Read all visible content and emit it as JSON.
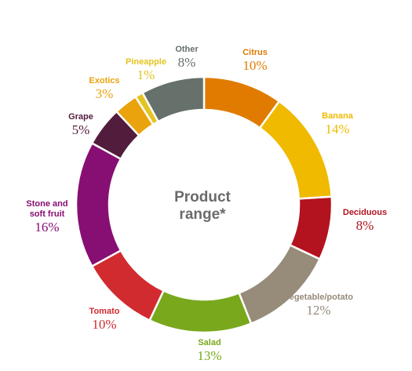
{
  "chart_data": {
    "type": "pie",
    "variant": "donut",
    "center_title": [
      "Product",
      "range*"
    ],
    "slices": [
      {
        "label": [
          "Citrus"
        ],
        "value": 10,
        "value_label": "10%",
        "color": "#e07b00"
      },
      {
        "label": [
          "Banana"
        ],
        "value": 14,
        "value_label": "14%",
        "color": "#efba00"
      },
      {
        "label": [
          "Deciduous"
        ],
        "value": 8,
        "value_label": "8%",
        "color": "#b3121f"
      },
      {
        "label": [
          "Vegetable/potato"
        ],
        "value": 12,
        "value_label": "12%",
        "color": "#978b79"
      },
      {
        "label": [
          "Salad"
        ],
        "value": 13,
        "value_label": "13%",
        "color": "#79a81d"
      },
      {
        "label": [
          "Tomato"
        ],
        "value": 10,
        "value_label": "10%",
        "color": "#d12b30"
      },
      {
        "label": [
          "Stone and",
          "soft fruit"
        ],
        "value": 16,
        "value_label": "16%",
        "color": "#870e72"
      },
      {
        "label": [
          "Grape"
        ],
        "value": 5,
        "value_label": "5%",
        "color": "#521c3c"
      },
      {
        "label": [
          "Exotics"
        ],
        "value": 3,
        "value_label": "3%",
        "color": "#eaa30c"
      },
      {
        "label": [
          "Pineapple"
        ],
        "value": 1,
        "value_label": "1%",
        "color": "#e4c421"
      },
      {
        "label": [
          "Other"
        ],
        "value": 8,
        "value_label": "8%",
        "color": "#65716a"
      }
    ]
  }
}
